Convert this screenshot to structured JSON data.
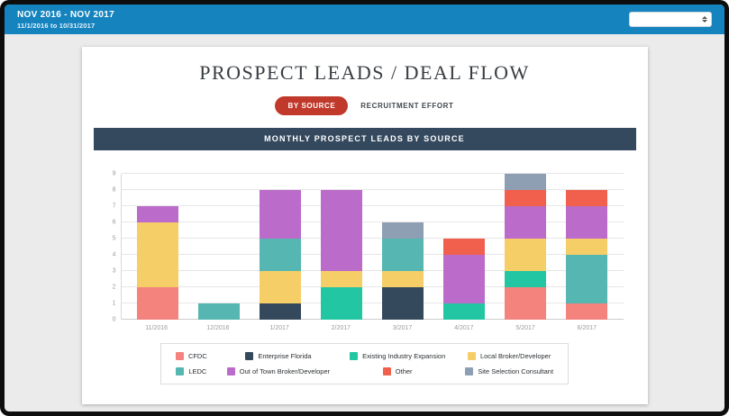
{
  "header": {
    "title": "NOV 2016 - NOV 2017",
    "subtitle": "11/1/2016 to 10/31/2017",
    "bg_color": "#1583BE",
    "dropdown": {
      "value": ""
    }
  },
  "main": {
    "title": "PROSPECT LEADS / DEAL FLOW",
    "tabs": [
      {
        "label": "BY SOURCE",
        "active": true,
        "color": "#C0392B"
      },
      {
        "label": "RECRUITMENT EFFORT",
        "active": false
      }
    ]
  },
  "panel": {
    "title": "MONTHLY PROSPECT LEADS BY SOURCE",
    "header_bg": "#34495E"
  },
  "chart_data": {
    "type": "bar",
    "stacked": true,
    "title": "MONTHLY PROSPECT LEADS BY SOURCE",
    "categories": [
      "11/2016",
      "12/2016",
      "1/2017",
      "2/2017",
      "3/2017",
      "4/2017",
      "5/2017",
      "6/2017"
    ],
    "series": [
      {
        "name": "CFDC",
        "color": "#F4827D"
      },
      {
        "name": "Enterprise Florida",
        "color": "#35495D"
      },
      {
        "name": "Existing Industry Expansion",
        "color": "#23C6A2"
      },
      {
        "name": "Local Broker/Developer",
        "color": "#F6CE68"
      },
      {
        "name": "LEDC",
        "color": "#55B6B2"
      },
      {
        "name": "Out of Town Broker/Developer",
        "color": "#BB6BC9"
      },
      {
        "name": "Other",
        "color": "#F0604D"
      },
      {
        "name": "Site Selection Consultant",
        "color": "#8E9FB3"
      }
    ],
    "bars": [
      {
        "category": "11/2016",
        "total": 7,
        "segments": [
          {
            "name": "CFDC",
            "value": 2
          },
          {
            "name": "Local Broker/Developer",
            "value": 4
          },
          {
            "name": "Out of Town Broker/Developer",
            "value": 1
          }
        ]
      },
      {
        "category": "12/2016",
        "total": 1,
        "segments": [
          {
            "name": "LEDC",
            "value": 1
          }
        ]
      },
      {
        "category": "1/2017",
        "total": 8,
        "segments": [
          {
            "name": "Enterprise Florida",
            "value": 1
          },
          {
            "name": "Local Broker/Developer",
            "value": 2
          },
          {
            "name": "LEDC",
            "value": 2
          },
          {
            "name": "Out of Town Broker/Developer",
            "value": 3
          }
        ]
      },
      {
        "category": "2/2017",
        "total": 8,
        "segments": [
          {
            "name": "Existing Industry Expansion",
            "value": 2
          },
          {
            "name": "Local Broker/Developer",
            "value": 1
          },
          {
            "name": "Out of Town Broker/Developer",
            "value": 5
          }
        ]
      },
      {
        "category": "3/2017",
        "total": 6,
        "segments": [
          {
            "name": "Enterprise Florida",
            "value": 2
          },
          {
            "name": "Local Broker/Developer",
            "value": 1
          },
          {
            "name": "LEDC",
            "value": 2
          },
          {
            "name": "Site Selection Consultant",
            "value": 1
          }
        ]
      },
      {
        "category": "4/2017",
        "total": 5,
        "segments": [
          {
            "name": "Existing Industry Expansion",
            "value": 1
          },
          {
            "name": "Out of Town Broker/Developer",
            "value": 3
          },
          {
            "name": "Other",
            "value": 1
          }
        ]
      },
      {
        "category": "5/2017",
        "total": 9,
        "segments": [
          {
            "name": "CFDC",
            "value": 2
          },
          {
            "name": "Existing Industry Expansion",
            "value": 1
          },
          {
            "name": "Local Broker/Developer",
            "value": 2
          },
          {
            "name": "Out of Town Broker/Developer",
            "value": 2
          },
          {
            "name": "Other",
            "value": 1
          },
          {
            "name": "Site Selection Consultant",
            "value": 1
          }
        ]
      },
      {
        "category": "6/2017",
        "total": 8,
        "segments": [
          {
            "name": "CFDC",
            "value": 1
          },
          {
            "name": "LEDC",
            "value": 3
          },
          {
            "name": "Local Broker/Developer",
            "value": 1
          },
          {
            "name": "Out of Town Broker/Developer",
            "value": 2
          },
          {
            "name": "Other",
            "value": 1
          }
        ]
      }
    ],
    "ylim": [
      0,
      9
    ],
    "yticks": [
      0,
      1,
      2,
      3,
      4,
      5,
      6,
      7,
      8,
      9
    ],
    "grid": true,
    "legend_position": "bottom"
  }
}
